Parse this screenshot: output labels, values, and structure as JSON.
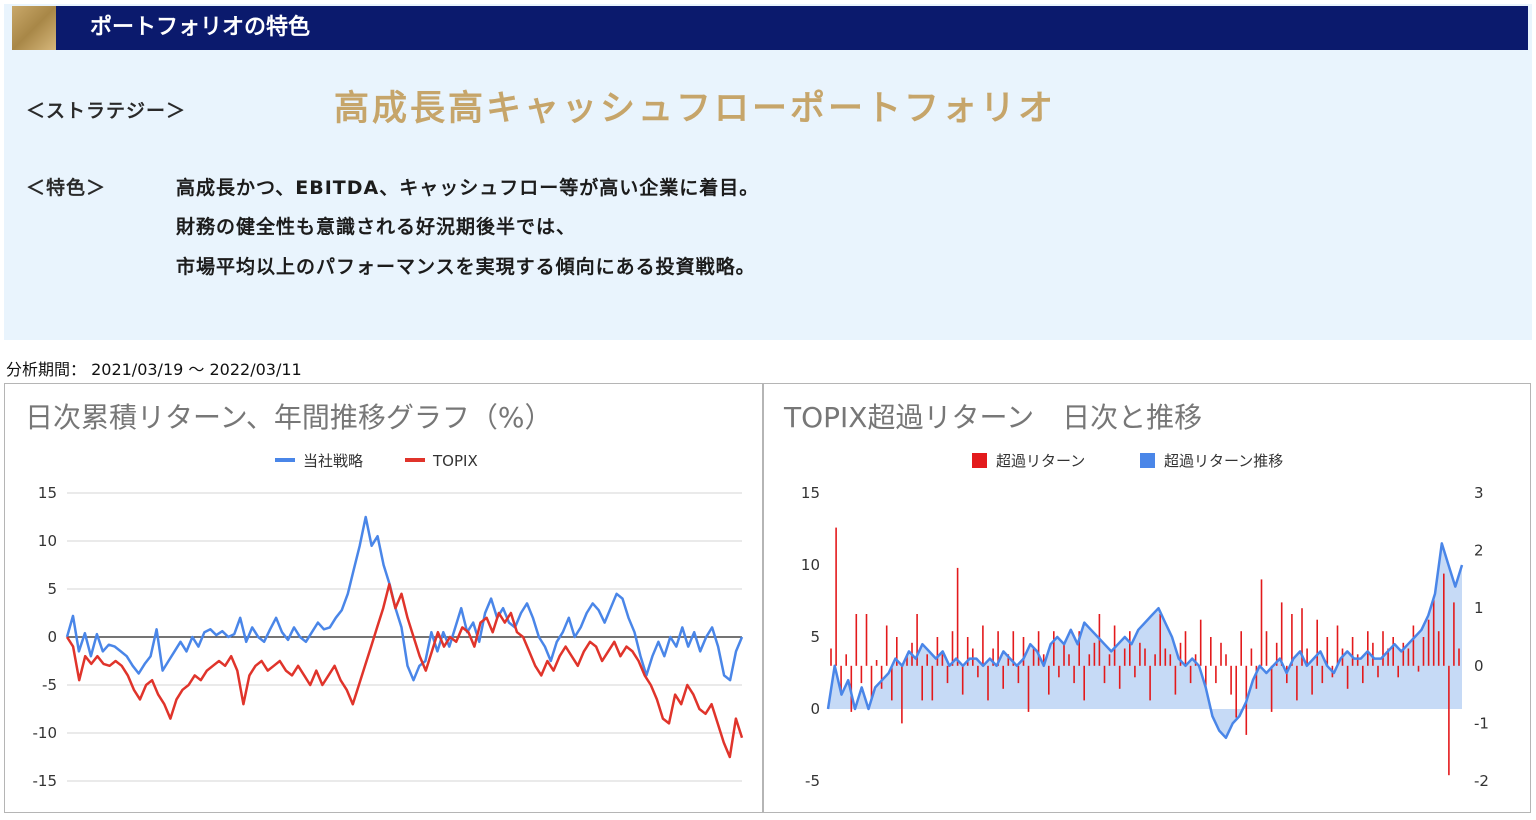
{
  "features": {
    "title": "ポートフォリオの特色",
    "strategy_label": "＜ストラテジー＞",
    "strategy_name": "高成長高キャッシュフローポートフォリオ",
    "feature_label": "＜特色＞",
    "feature_lines": [
      "高成長かつ、EBITDA、キャッシュフロー等が高い企業に着目。",
      "財務の健全性も意識される好況期後半では、",
      "市場平均以上のパフォーマンスを実現する傾向にある投資戦略。"
    ]
  },
  "period": "分析期間： 2021/03/19 ～ 2022/03/11",
  "colors": {
    "header_bg": "#0b1a6d",
    "accent_gold": "#c6a56a",
    "panel_bg": "#e9f4fd",
    "strategy_line": "#4a86e8",
    "topix_line": "#e0342b",
    "excess_bar": "#e31a1c",
    "excess_area_fill": "#c6daf6"
  },
  "chart_data": [
    {
      "type": "line",
      "title": "日次累積リターン、年間推移グラフ（%）",
      "legend": "top-center",
      "grid": true,
      "ylim": [
        -15,
        15
      ],
      "yticks": [
        15,
        10,
        5,
        0,
        -5,
        -10,
        -15
      ],
      "series": [
        {
          "name": "当社戦略",
          "values": [
            0,
            2.2,
            -1.5,
            0.4,
            -2.0,
            0.3,
            -1.5,
            -0.8,
            -1.0,
            -1.5,
            -2.0,
            -3.0,
            -3.8,
            -2.8,
            -2.0,
            0.8,
            -3.5,
            -2.5,
            -1.5,
            -0.5,
            -1.5,
            0,
            -1.0,
            0.5,
            0.8,
            0.2,
            0.6,
            0,
            0.3,
            2.0,
            -0.5,
            1.0,
            0,
            -0.5,
            0.8,
            2.0,
            0.5,
            -0.3,
            1.0,
            0,
            -0.5,
            0.5,
            1.5,
            0.8,
            1.0,
            2.0,
            2.8,
            4.5,
            7.0,
            9.5,
            12.5,
            9.5,
            10.5,
            7.5,
            5.5,
            3.0,
            1.0,
            -3.0,
            -4.5,
            -3.0,
            -2.5,
            0.5,
            -1.5,
            0.5,
            -1.0,
            1.0,
            3.0,
            0.5,
            1.5,
            -0.5,
            2.5,
            4.0,
            2.0,
            3.0,
            1.5,
            1.0,
            2.5,
            3.5,
            2.0,
            0,
            -1.0,
            -2.5,
            -0.5,
            0.5,
            2.0,
            0,
            1.0,
            2.5,
            3.5,
            2.8,
            1.5,
            3.0,
            4.5,
            4.0,
            2.0,
            0.5,
            -2.0,
            -4.0,
            -2.0,
            -0.5,
            -2.0,
            0,
            -1.0,
            1.0,
            -1.0,
            0.5,
            -1.5,
            0,
            1.0,
            -1.0,
            -4.0,
            -4.5,
            -1.5,
            0
          ]
        },
        {
          "name": "TOPIX",
          "values": [
            0,
            -1.0,
            -4.5,
            -2.0,
            -2.8,
            -2.0,
            -2.8,
            -3.0,
            -2.5,
            -3.0,
            -4.0,
            -5.5,
            -6.5,
            -5.0,
            -4.5,
            -6.0,
            -7.0,
            -8.5,
            -6.5,
            -5.5,
            -5.0,
            -4.0,
            -4.5,
            -3.5,
            -3.0,
            -2.5,
            -3.0,
            -2.0,
            -3.5,
            -7.0,
            -4.0,
            -3.0,
            -2.5,
            -3.5,
            -3.0,
            -2.5,
            -3.5,
            -4.0,
            -3.0,
            -4.0,
            -5.0,
            -3.5,
            -5.0,
            -4.0,
            -3.0,
            -4.5,
            -5.5,
            -7.0,
            -5.0,
            -3.0,
            -1.0,
            1.0,
            3.0,
            5.5,
            3.0,
            4.5,
            2.0,
            0,
            -2.0,
            -3.5,
            -1.5,
            0.5,
            -1.0,
            0,
            -0.5,
            1.0,
            0.5,
            -1.0,
            1.5,
            2.0,
            0.5,
            2.5,
            1.5,
            2.5,
            0.5,
            0,
            -1.5,
            -3.0,
            -4.0,
            -2.5,
            -3.5,
            -2.0,
            -1.0,
            -2.0,
            -3.0,
            -1.5,
            -0.5,
            -1.0,
            -2.5,
            -1.5,
            -0.5,
            -2.0,
            -1.0,
            -1.5,
            -2.5,
            -4.0,
            -5.0,
            -6.5,
            -8.5,
            -9.0,
            -6.0,
            -7.0,
            -5.0,
            -6.0,
            -7.5,
            -8.0,
            -7.0,
            -9.0,
            -11.0,
            -12.5,
            -8.5,
            -10.5
          ]
        }
      ]
    },
    {
      "type": "bar",
      "title": "TOPIX超過リターン　日次と推移",
      "legend": "top-center",
      "grid": false,
      "ylim": [
        -5,
        15
      ],
      "yticks": [
        15,
        10,
        5,
        0,
        -5
      ],
      "y2lim": [
        -2,
        3
      ],
      "y2ticks": [
        3,
        2,
        1,
        0,
        -1,
        -2
      ],
      "series": [
        {
          "name": "超過リターン",
          "axis": "right",
          "type": "bar",
          "values": [
            0.3,
            2.4,
            -0.5,
            0.2,
            -0.8,
            0.9,
            -0.3,
            0.9,
            -0.6,
            0.1,
            -0.4,
            0.7,
            -0.6,
            0.5,
            -1.0,
            0.2,
            0.4,
            0.9,
            -0.6,
            0.2,
            -0.6,
            0.5,
            0.2,
            -0.3,
            0.6,
            1.7,
            -0.5,
            0.5,
            0.3,
            -0.2,
            0.7,
            -0.6,
            0.3,
            0.6,
            -0.4,
            0.2,
            0.6,
            -0.3,
            0.5,
            -0.8,
            0.3,
            0.6,
            0.2,
            -0.5,
            0.6,
            -0.2,
            0.4,
            0.2,
            -0.3,
            0.6,
            -0.6,
            0.2,
            0.4,
            0.9,
            -0.3,
            0.2,
            0.7,
            -0.4,
            0.3,
            0.6,
            -0.2,
            0.4,
            0.3,
            -0.6,
            0.2,
            0.9,
            0.3,
            0.2,
            -0.5,
            0.4,
            0.6,
            -0.3,
            0.2,
            0.8,
            -0.4,
            0.5,
            -0.3,
            0.4,
            0.2,
            -0.5,
            -0.9,
            0.6,
            -1.2,
            0.3,
            -0.4,
            1.5,
            0.6,
            -0.8,
            0.4,
            1.1,
            -0.3,
            0.9,
            -0.6,
            1.0,
            0.3,
            -0.5,
            0.8,
            -0.3,
            0.5,
            -0.2,
            0.7,
            0.3,
            -0.4,
            0.5,
            0.2,
            -0.3,
            0.6,
            0.4,
            -0.2,
            0.6,
            0.3,
            0.5,
            -0.2,
            0.4,
            0.3,
            0.7,
            -0.1,
            0.5,
            0.8,
            1.2,
            0.6,
            1.6,
            -1.9,
            1.1,
            0.3
          ]
        },
        {
          "name": "超過リターン推移",
          "axis": "left",
          "type": "area",
          "values": [
            0,
            3.0,
            1.0,
            2.0,
            0,
            1.5,
            0,
            1.5,
            2.0,
            2.5,
            3.5,
            3.0,
            4.0,
            3.5,
            4.5,
            4.0,
            3.5,
            4.0,
            3.0,
            3.5,
            3.0,
            3.5,
            3.5,
            3.0,
            3.5,
            3.0,
            4.0,
            3.5,
            3.0,
            3.5,
            4.5,
            4.0,
            3.0,
            4.5,
            5.0,
            4.5,
            5.5,
            4.5,
            6.0,
            5.5,
            5.0,
            4.5,
            4.0,
            4.5,
            5.0,
            4.5,
            5.5,
            6.0,
            6.5,
            7.0,
            6.0,
            5.0,
            3.5,
            3.0,
            3.5,
            3.0,
            1.5,
            -0.5,
            -1.5,
            -2.0,
            -1.0,
            -0.5,
            0.5,
            2.0,
            3.0,
            2.5,
            3.0,
            3.5,
            2.5,
            3.5,
            4.0,
            3.0,
            3.5,
            4.0,
            3.0,
            2.5,
            3.5,
            4.0,
            3.5,
            3.5,
            4.0,
            3.5,
            3.5,
            4.0,
            4.5,
            4.0,
            4.5,
            5.0,
            5.5,
            6.5,
            8.0,
            11.5,
            10.0,
            8.5,
            10.0
          ]
        }
      ]
    }
  ]
}
